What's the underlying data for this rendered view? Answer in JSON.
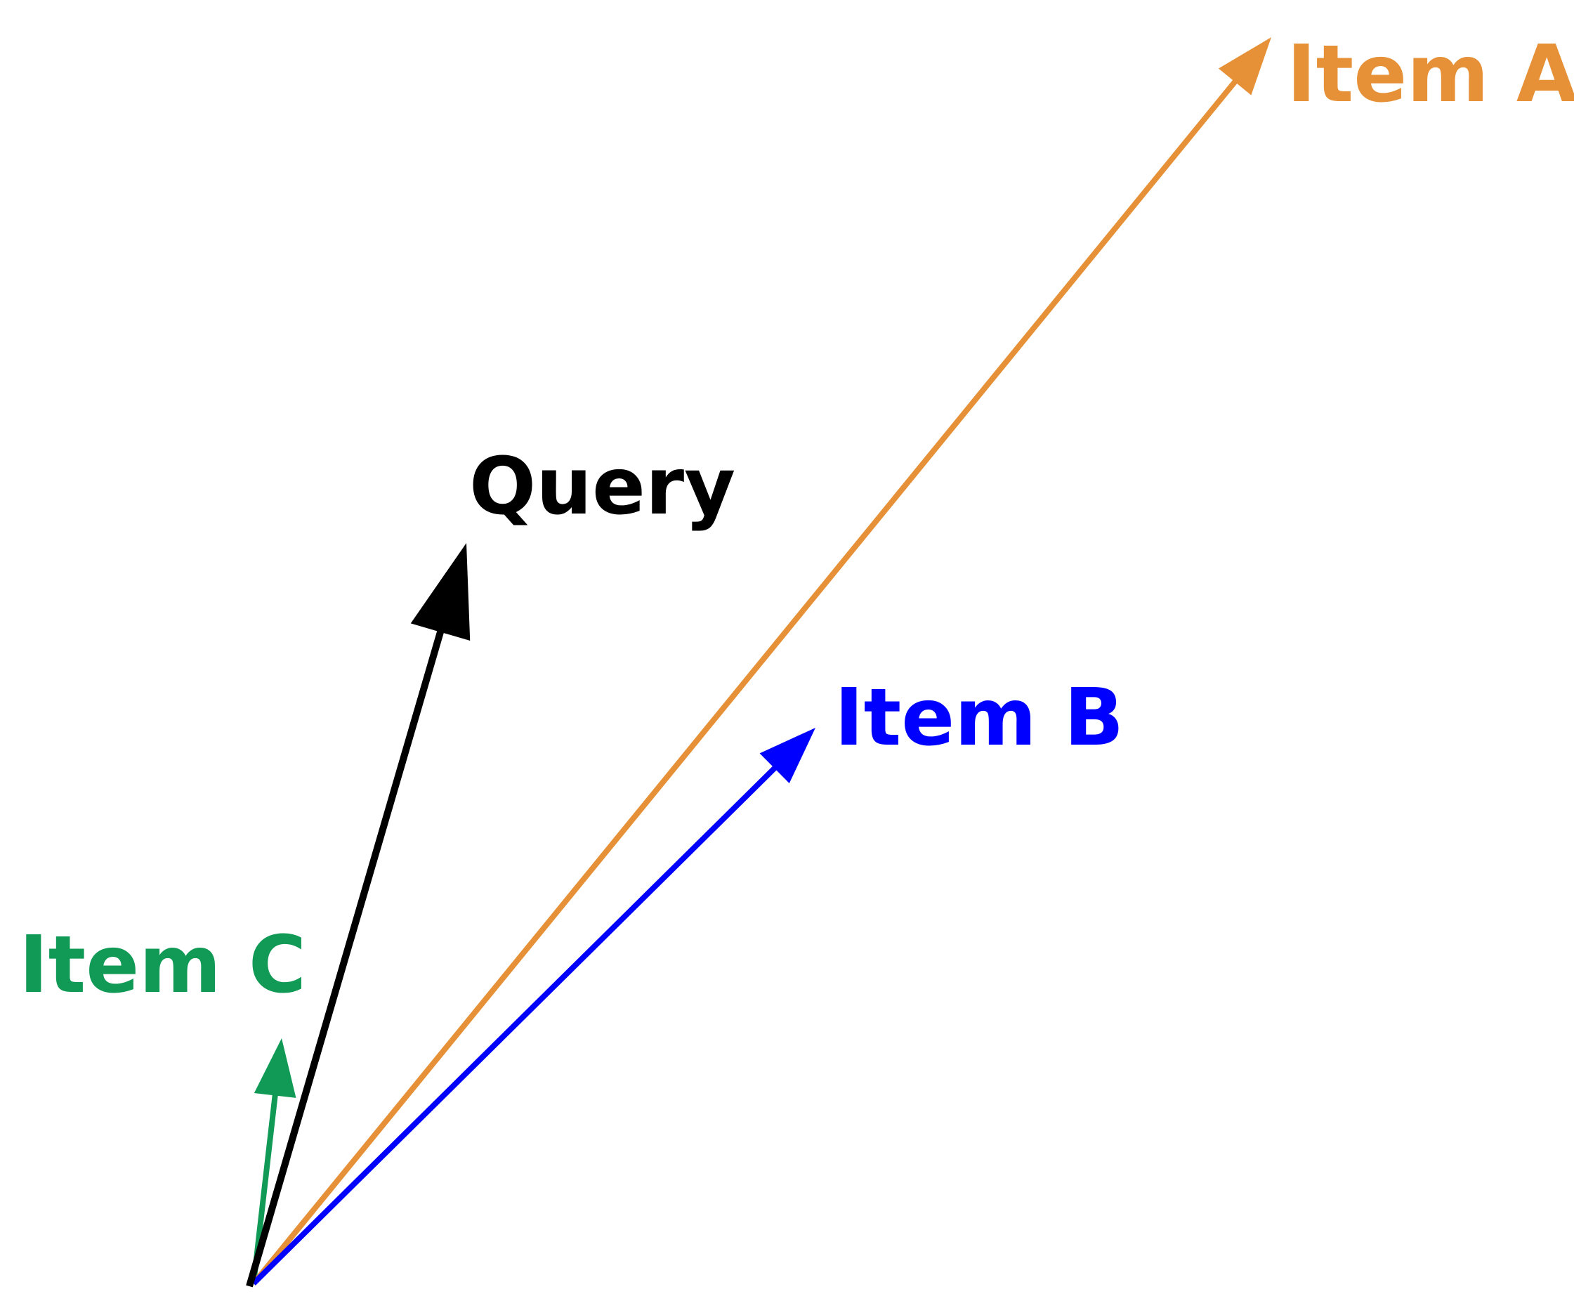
{
  "vectors": [
    {
      "id": "item-c",
      "label": "Item C",
      "color": "#109A55"
    },
    {
      "id": "item-a",
      "label": "Item A",
      "color": "#E69138"
    },
    {
      "id": "item-b",
      "label": "Item B",
      "color": "#0000FF"
    },
    {
      "id": "query",
      "label": "Query",
      "color": "#000000"
    }
  ]
}
